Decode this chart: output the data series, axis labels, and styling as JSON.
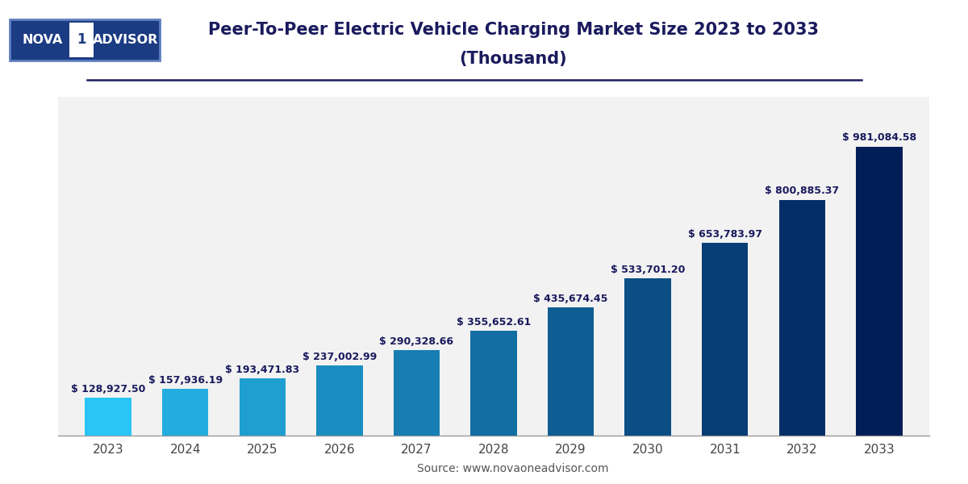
{
  "title_line1": "Peer-To-Peer Electric Vehicle Charging Market Size 2023 to 2033",
  "title_line2": "(Thousand)",
  "source": "Source: www.novaoneadvisor.com",
  "years": [
    "2023",
    "2024",
    "2025",
    "2026",
    "2027",
    "2028",
    "2029",
    "2030",
    "2031",
    "2032",
    "2033"
  ],
  "values": [
    128927.5,
    157936.19,
    193471.83,
    237002.99,
    290328.66,
    355652.61,
    435674.45,
    533701.2,
    653783.97,
    800885.37,
    981084.58
  ],
  "labels": [
    "$ 128,927.50",
    "$ 157,936.19",
    "$ 193,471.83",
    "$ 237,002.99",
    "$ 290,328.66",
    "$ 355,652.61",
    "$ 435,674.45",
    "$ 533,701.20",
    "$ 653,783.97",
    "$ 800,885.37",
    "$ 981,084.58"
  ],
  "bar_colors": [
    "#29C5F6",
    "#22ADDE",
    "#1E9FCF",
    "#1A8EC0",
    "#167EB2",
    "#126EA3",
    "#0E5E94",
    "#0A4E85",
    "#073E76",
    "#042E67",
    "#011E58"
  ],
  "bg_color": "#FFFFFF",
  "plot_bg_color": "#F2F2F2",
  "grid_color": "#CCCCCC",
  "title_color": "#1A1A5E",
  "label_color": "#1A1A5E",
  "axis_color": "#444444",
  "ylim": [
    0,
    1150000
  ],
  "title_fontsize": 15,
  "label_fontsize": 9,
  "tick_fontsize": 11,
  "source_fontsize": 10,
  "logo_bg": "#1B3B82",
  "logo_highlight": "#2E6DB4"
}
